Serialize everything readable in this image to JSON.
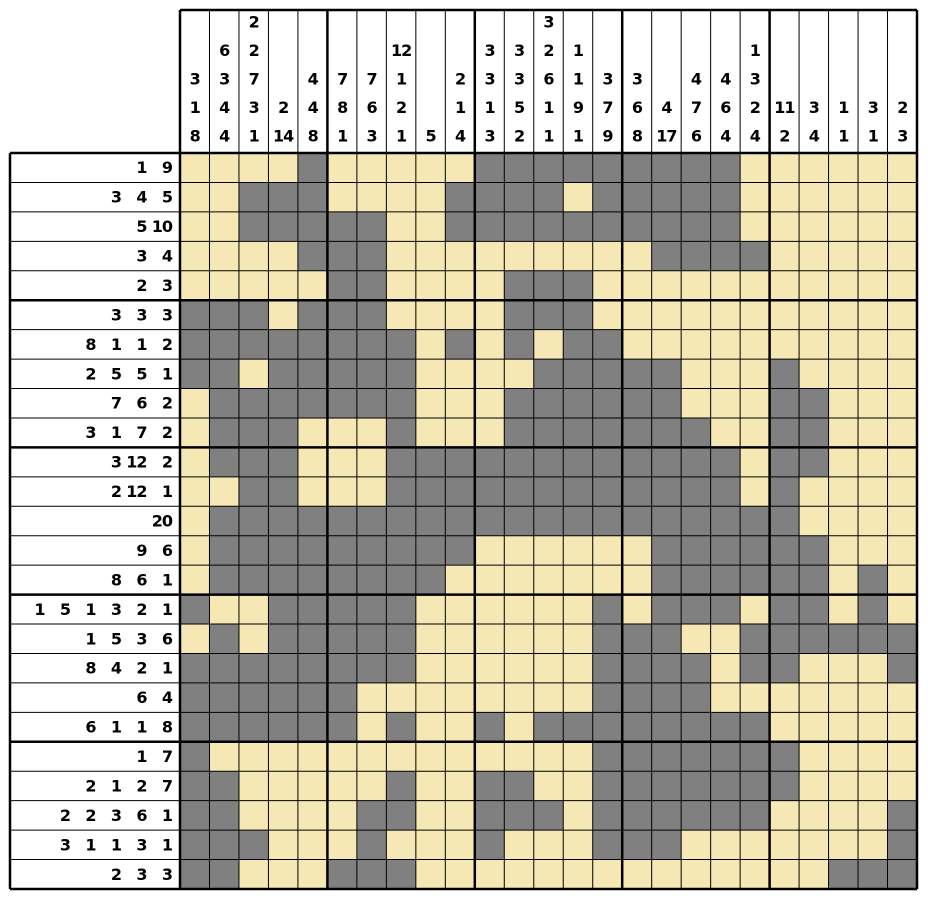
{
  "puzzle": {
    "column_clues": [
      [
        3,
        1,
        8
      ],
      [
        6,
        3,
        4,
        4
      ],
      [
        2,
        2,
        7,
        3,
        1
      ],
      [
        2,
        14
      ],
      [
        4,
        4,
        8
      ],
      [
        7,
        8,
        1
      ],
      [
        7,
        6,
        3
      ],
      [
        12,
        1,
        2,
        1
      ],
      [
        5
      ],
      [
        2,
        1,
        4
      ],
      [
        3,
        3,
        1,
        3
      ],
      [
        3,
        3,
        5,
        2
      ],
      [
        3,
        2,
        6,
        1,
        1
      ],
      [
        1,
        1,
        9,
        1
      ],
      [
        3,
        7,
        9
      ],
      [
        3,
        6,
        8
      ],
      [
        4,
        17
      ],
      [
        4,
        7,
        6
      ],
      [
        4,
        6,
        4
      ],
      [
        1,
        3,
        2,
        4
      ],
      [
        11,
        2
      ],
      [
        3,
        4
      ],
      [
        1,
        1
      ],
      [
        3,
        1
      ],
      [
        2,
        3
      ]
    ],
    "row_clues": [
      [
        1,
        9
      ],
      [
        3,
        4,
        5
      ],
      [
        5,
        10
      ],
      [
        3,
        4
      ],
      [
        2,
        3
      ],
      [
        3,
        3,
        3
      ],
      [
        8,
        1,
        1,
        2
      ],
      [
        2,
        5,
        5,
        1
      ],
      [
        7,
        6,
        2
      ],
      [
        3,
        1,
        7,
        2
      ],
      [
        3,
        12,
        2
      ],
      [
        2,
        12,
        1
      ],
      [
        20
      ],
      [
        9,
        6
      ],
      [
        8,
        6,
        1
      ],
      [
        1,
        5,
        1,
        3,
        2,
        1
      ],
      [
        1,
        5,
        3,
        6
      ],
      [
        8,
        4,
        2,
        1
      ],
      [
        6,
        4
      ],
      [
        6,
        1,
        1,
        8
      ],
      [
        1,
        7
      ],
      [
        2,
        1,
        2,
        7
      ],
      [
        2,
        2,
        3,
        6,
        1
      ],
      [
        3,
        1,
        1,
        3,
        1
      ],
      [
        2,
        3,
        3
      ]
    ],
    "grid": [
      [
        0,
        0,
        0,
        0,
        1,
        0,
        0,
        0,
        0,
        0,
        1,
        1,
        1,
        1,
        1,
        1,
        1,
        1,
        1,
        0,
        0,
        0,
        0,
        0,
        0
      ],
      [
        0,
        0,
        1,
        1,
        1,
        0,
        0,
        0,
        0,
        1,
        1,
        1,
        1,
        0,
        1,
        1,
        1,
        1,
        1,
        0,
        0,
        0,
        0,
        0,
        0
      ],
      [
        0,
        0,
        1,
        1,
        1,
        1,
        1,
        0,
        0,
        1,
        1,
        1,
        1,
        1,
        1,
        1,
        1,
        1,
        1,
        0,
        0,
        0,
        0,
        0,
        0
      ],
      [
        0,
        0,
        0,
        0,
        1,
        1,
        1,
        0,
        0,
        0,
        0,
        0,
        0,
        0,
        0,
        0,
        1,
        1,
        1,
        1,
        0,
        0,
        0,
        0,
        0
      ],
      [
        0,
        0,
        0,
        0,
        0,
        1,
        1,
        0,
        0,
        0,
        0,
        1,
        1,
        1,
        0,
        0,
        0,
        0,
        0,
        0,
        0,
        0,
        0,
        0,
        0
      ],
      [
        1,
        1,
        1,
        0,
        1,
        1,
        1,
        0,
        0,
        0,
        0,
        1,
        1,
        1,
        0,
        0,
        0,
        0,
        0,
        0,
        0,
        0,
        0,
        0,
        0
      ],
      [
        1,
        1,
        1,
        1,
        1,
        1,
        1,
        1,
        0,
        1,
        0,
        1,
        0,
        1,
        1,
        0,
        0,
        0,
        0,
        0,
        0,
        0,
        0,
        0,
        0
      ],
      [
        1,
        1,
        0,
        1,
        1,
        1,
        1,
        1,
        0,
        0,
        0,
        0,
        1,
        1,
        1,
        1,
        1,
        0,
        0,
        0,
        1,
        0,
        0,
        0,
        0
      ],
      [
        0,
        1,
        1,
        1,
        1,
        1,
        1,
        1,
        0,
        0,
        0,
        1,
        1,
        1,
        1,
        1,
        1,
        0,
        0,
        0,
        1,
        1,
        0,
        0,
        0
      ],
      [
        0,
        1,
        1,
        1,
        0,
        0,
        0,
        1,
        0,
        0,
        0,
        1,
        1,
        1,
        1,
        1,
        1,
        1,
        0,
        0,
        1,
        1,
        0,
        0,
        0
      ],
      [
        0,
        1,
        1,
        1,
        0,
        0,
        0,
        1,
        1,
        1,
        1,
        1,
        1,
        1,
        1,
        1,
        1,
        1,
        1,
        0,
        1,
        1,
        0,
        0,
        0
      ],
      [
        0,
        0,
        1,
        1,
        0,
        0,
        0,
        1,
        1,
        1,
        1,
        1,
        1,
        1,
        1,
        1,
        1,
        1,
        1,
        0,
        1,
        0,
        0,
        0,
        0
      ],
      [
        0,
        1,
        1,
        1,
        1,
        1,
        1,
        1,
        1,
        1,
        1,
        1,
        1,
        1,
        1,
        1,
        1,
        1,
        1,
        1,
        1,
        0,
        0,
        0,
        0
      ],
      [
        0,
        1,
        1,
        1,
        1,
        1,
        1,
        1,
        1,
        1,
        0,
        0,
        0,
        0,
        0,
        0,
        1,
        1,
        1,
        1,
        1,
        1,
        0,
        0,
        0
      ],
      [
        0,
        1,
        1,
        1,
        1,
        1,
        1,
        1,
        1,
        0,
        0,
        0,
        0,
        0,
        0,
        0,
        1,
        1,
        1,
        1,
        1,
        1,
        0,
        1,
        0
      ],
      [
        1,
        0,
        0,
        1,
        1,
        1,
        1,
        1,
        0,
        0,
        0,
        0,
        0,
        0,
        1,
        0,
        1,
        1,
        1,
        0,
        1,
        1,
        0,
        1,
        0
      ],
      [
        0,
        1,
        0,
        1,
        1,
        1,
        1,
        1,
        0,
        0,
        0,
        0,
        0,
        0,
        1,
        1,
        1,
        0,
        0,
        1,
        1,
        1,
        1,
        1,
        1
      ],
      [
        1,
        1,
        1,
        1,
        1,
        1,
        1,
        1,
        0,
        0,
        0,
        0,
        0,
        0,
        1,
        1,
        1,
        1,
        0,
        1,
        1,
        0,
        0,
        0,
        1
      ],
      [
        1,
        1,
        1,
        1,
        1,
        1,
        0,
        0,
        0,
        0,
        0,
        0,
        0,
        0,
        1,
        1,
        1,
        1,
        0,
        0,
        0,
        0,
        0,
        0,
        0
      ],
      [
        1,
        1,
        1,
        1,
        1,
        1,
        0,
        1,
        0,
        0,
        1,
        0,
        1,
        1,
        1,
        1,
        1,
        1,
        1,
        1,
        0,
        0,
        0,
        0,
        0
      ],
      [
        1,
        0,
        0,
        0,
        0,
        0,
        0,
        0,
        0,
        0,
        0,
        0,
        0,
        0,
        1,
        1,
        1,
        1,
        1,
        1,
        1,
        0,
        0,
        0,
        0
      ],
      [
        1,
        1,
        0,
        0,
        0,
        0,
        0,
        1,
        0,
        0,
        1,
        1,
        0,
        0,
        1,
        1,
        1,
        1,
        1,
        1,
        1,
        0,
        0,
        0,
        0
      ],
      [
        1,
        1,
        0,
        0,
        0,
        0,
        1,
        1,
        0,
        0,
        1,
        1,
        1,
        0,
        1,
        1,
        1,
        1,
        1,
        1,
        0,
        0,
        0,
        0,
        1
      ],
      [
        1,
        1,
        1,
        0,
        0,
        0,
        1,
        0,
        0,
        0,
        1,
        0,
        0,
        0,
        1,
        1,
        1,
        0,
        0,
        0,
        0,
        0,
        0,
        0,
        1
      ],
      [
        1,
        1,
        0,
        0,
        0,
        1,
        1,
        1,
        0,
        0,
        0,
        0,
        0,
        0,
        0,
        0,
        0,
        0,
        0,
        0,
        0,
        0,
        1,
        1,
        1
      ]
    ]
  }
}
